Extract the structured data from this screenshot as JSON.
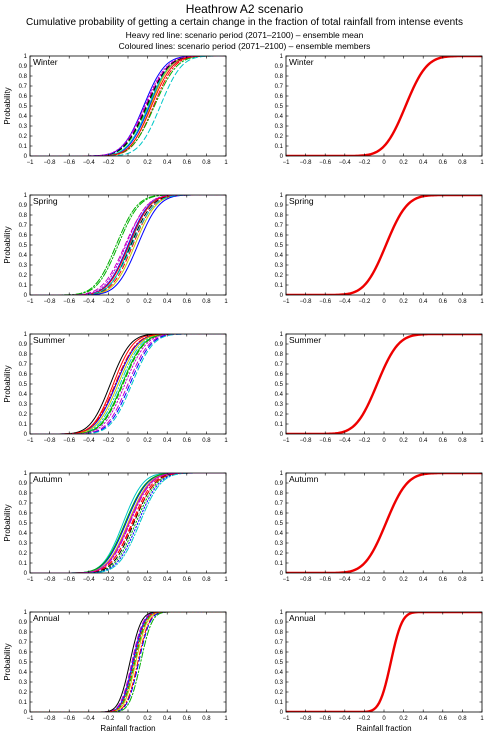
{
  "header": {
    "title": "Heathrow A2 scenario",
    "subtitle": "Cumulative probability of getting a certain change in the fraction of total rainfall from intense events",
    "note_mean": "Heavy red line: scenario period (2071–2100) – ensemble mean",
    "note_members": "Coloured lines: scenario period (2071–2100) – ensemble members"
  },
  "axes": {
    "ylabel": "Probability",
    "xlabel": "Rainfall fraction",
    "xlim": [
      -1,
      1
    ],
    "ylim": [
      0,
      1
    ],
    "x_ticks": [
      "−1",
      "−0.8",
      "−0.6",
      "−0.4",
      "−0.2",
      "0",
      "0.2",
      "0.4",
      "0.6",
      "0.8",
      "1"
    ],
    "y_ticks": [
      "0",
      "0.1",
      "0.2",
      "0.3",
      "0.4",
      "0.5",
      "0.6",
      "0.7",
      "0.8",
      "0.9",
      "1"
    ]
  },
  "member_colors": [
    "#0000ff",
    "#00b000",
    "#ff0000",
    "#00c8c8",
    "#c800c8",
    "#c8c800",
    "#000000"
  ],
  "mean_color": "#ee0000",
  "chart_data": [
    {
      "type": "line",
      "season": "Winter",
      "panel": "members",
      "title": "Winter",
      "series": [
        {
          "mu": 0.22,
          "s": 0.17,
          "ls": "solid"
        },
        {
          "mu": 0.2,
          "s": 0.18,
          "ls": "dashed"
        },
        {
          "mu": 0.26,
          "s": 0.17,
          "ls": "dashdot"
        },
        {
          "mu": 0.21,
          "s": 0.17,
          "ls": "solid"
        },
        {
          "mu": 0.18,
          "s": 0.18,
          "ls": "dashed"
        },
        {
          "mu": 0.23,
          "s": 0.16,
          "ls": "solid"
        },
        {
          "mu": 0.19,
          "s": 0.18,
          "ls": "dashed"
        },
        {
          "mu": 0.16,
          "s": 0.17,
          "ls": "solid"
        },
        {
          "mu": 0.27,
          "s": 0.18,
          "ls": "dashdot"
        },
        {
          "mu": 0.24,
          "s": 0.17,
          "ls": "solid"
        },
        {
          "mu": 0.33,
          "s": 0.17,
          "ls": "dashed"
        },
        {
          "mu": 0.17,
          "s": 0.18,
          "ls": "dotted"
        }
      ]
    },
    {
      "type": "line",
      "season": "Winter",
      "panel": "mean",
      "title": "Winter",
      "series": [
        {
          "mu": 0.22,
          "s": 0.17,
          "ls": "solid"
        }
      ]
    },
    {
      "type": "line",
      "season": "Spring",
      "panel": "members",
      "title": "Spring",
      "series": [
        {
          "mu": 0.0,
          "s": 0.17,
          "ls": "solid"
        },
        {
          "mu": -0.1,
          "s": 0.17,
          "ls": "dashdot"
        },
        {
          "mu": 0.05,
          "s": 0.17,
          "ls": "dashed"
        },
        {
          "mu": 0.02,
          "s": 0.16,
          "ls": "solid"
        },
        {
          "mu": -0.03,
          "s": 0.18,
          "ls": "dashed"
        },
        {
          "mu": 0.07,
          "s": 0.17,
          "ls": "solid"
        },
        {
          "mu": 0.03,
          "s": 0.17,
          "ls": "dashed"
        },
        {
          "mu": 0.1,
          "s": 0.17,
          "ls": "solid"
        },
        {
          "mu": -0.12,
          "s": 0.17,
          "ls": "dashdot"
        },
        {
          "mu": 0.01,
          "s": 0.17,
          "ls": "solid"
        },
        {
          "mu": 0.04,
          "s": 0.18,
          "ls": "dashed"
        },
        {
          "mu": -0.02,
          "s": 0.17,
          "ls": "dotted"
        }
      ]
    },
    {
      "type": "line",
      "season": "Spring",
      "panel": "mean",
      "title": "Spring",
      "series": [
        {
          "mu": 0.02,
          "s": 0.17,
          "ls": "solid"
        }
      ]
    },
    {
      "type": "line",
      "season": "Summer",
      "panel": "members",
      "title": "Summer",
      "series": [
        {
          "mu": -0.12,
          "s": 0.17,
          "ls": "solid"
        },
        {
          "mu": -0.05,
          "s": 0.17,
          "ls": "dashed"
        },
        {
          "mu": -0.15,
          "s": 0.16,
          "ls": "solid"
        },
        {
          "mu": -0.08,
          "s": 0.17,
          "ls": "dashdot"
        },
        {
          "mu": 0.0,
          "s": 0.17,
          "ls": "dashed"
        },
        {
          "mu": -0.1,
          "s": 0.17,
          "ls": "solid"
        },
        {
          "mu": -0.18,
          "s": 0.16,
          "ls": "solid"
        },
        {
          "mu": 0.02,
          "s": 0.17,
          "ls": "dashed"
        },
        {
          "mu": -0.06,
          "s": 0.17,
          "ls": "solid"
        },
        {
          "mu": -0.13,
          "s": 0.17,
          "ls": "dashdot"
        },
        {
          "mu": 0.04,
          "s": 0.17,
          "ls": "dashed"
        },
        {
          "mu": -0.03,
          "s": 0.17,
          "ls": "dotted"
        }
      ]
    },
    {
      "type": "line",
      "season": "Summer",
      "panel": "mean",
      "title": "Summer",
      "series": [
        {
          "mu": -0.07,
          "s": 0.17,
          "ls": "solid"
        }
      ]
    },
    {
      "type": "line",
      "season": "Autumn",
      "panel": "members",
      "title": "Autumn",
      "series": [
        {
          "mu": -0.02,
          "s": 0.17,
          "ls": "solid"
        },
        {
          "mu": 0.08,
          "s": 0.17,
          "ls": "dotted"
        },
        {
          "mu": 0.04,
          "s": 0.17,
          "ls": "dashed"
        },
        {
          "mu": -0.05,
          "s": 0.16,
          "ls": "solid"
        },
        {
          "mu": 0.02,
          "s": 0.17,
          "ls": "dashdot"
        },
        {
          "mu": 0.0,
          "s": 0.17,
          "ls": "solid"
        },
        {
          "mu": 0.06,
          "s": 0.17,
          "ls": "dashed"
        },
        {
          "mu": 0.1,
          "s": 0.17,
          "ls": "dotted"
        },
        {
          "mu": -0.03,
          "s": 0.17,
          "ls": "solid"
        },
        {
          "mu": 0.05,
          "s": 0.18,
          "ls": "dashed"
        },
        {
          "mu": 0.12,
          "s": 0.17,
          "ls": "dashdot"
        },
        {
          "mu": 0.01,
          "s": 0.17,
          "ls": "solid"
        }
      ]
    },
    {
      "type": "line",
      "season": "Autumn",
      "panel": "mean",
      "title": "Autumn",
      "series": [
        {
          "mu": 0.02,
          "s": 0.17,
          "ls": "solid"
        }
      ]
    },
    {
      "type": "line",
      "season": "Annual",
      "panel": "members",
      "title": "Annual",
      "series": [
        {
          "mu": 0.05,
          "s": 0.09,
          "ls": "solid"
        },
        {
          "mu": 0.07,
          "s": 0.09,
          "ls": "dashed"
        },
        {
          "mu": 0.1,
          "s": 0.09,
          "ls": "dashdot"
        },
        {
          "mu": 0.06,
          "s": 0.09,
          "ls": "solid"
        },
        {
          "mu": 0.04,
          "s": 0.09,
          "ls": "dashed"
        },
        {
          "mu": 0.08,
          "s": 0.09,
          "ls": "solid"
        },
        {
          "mu": 0.02,
          "s": 0.09,
          "ls": "solid"
        },
        {
          "mu": 0.11,
          "s": 0.09,
          "ls": "dashed"
        },
        {
          "mu": 0.13,
          "s": 0.09,
          "ls": "dashdot"
        },
        {
          "mu": 0.06,
          "s": 0.09,
          "ls": "dotted"
        }
      ]
    },
    {
      "type": "line",
      "season": "Annual",
      "panel": "mean",
      "title": "Annual",
      "series": [
        {
          "mu": 0.07,
          "s": 0.09,
          "ls": "solid"
        }
      ]
    }
  ]
}
